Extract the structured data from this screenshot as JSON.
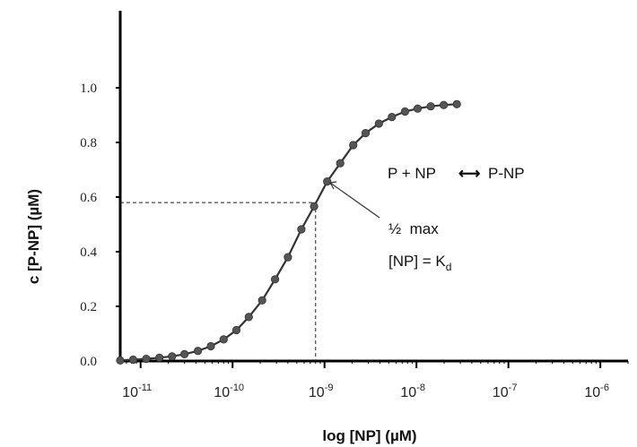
{
  "chart_data": {
    "type": "scatter",
    "title": "",
    "xlabel": "log [NP] (µM)",
    "ylabel": "c [P-NP] (µM)",
    "x_scale": "log",
    "xlim": [
      6e-12,
      2e-06
    ],
    "ylim": [
      0,
      1.2
    ],
    "x_ticks": [
      {
        "value": 1e-11,
        "base": "10",
        "exp": "-11"
      },
      {
        "value": 1e-10,
        "base": "10",
        "exp": "-10"
      },
      {
        "value": 1e-09,
        "base": "10",
        "exp": "-9"
      },
      {
        "value": 1e-08,
        "base": "10",
        "exp": "-8"
      },
      {
        "value": 1e-07,
        "base": "10",
        "exp": "-7"
      },
      {
        "value": 1e-06,
        "base": "10",
        "exp": "-6"
      }
    ],
    "y_ticks": [
      {
        "value": 0.0,
        "label": "0.0"
      },
      {
        "value": 0.2,
        "label": "0.2"
      },
      {
        "value": 0.4,
        "label": "0.4"
      },
      {
        "value": 0.6,
        "label": "0.6"
      },
      {
        "value": 0.8,
        "label": "0.8"
      },
      {
        "value": 1.0,
        "label": "1.0"
      }
    ],
    "grid": false,
    "series": [
      {
        "color": "#555555",
        "line_color": "#333333",
        "x": [
          6e-12,
          8.3e-12,
          1.15e-11,
          1.6e-11,
          2.2e-11,
          3e-11,
          4.2e-11,
          5.8e-11,
          8e-11,
          1.1e-10,
          1.5e-10,
          2.1e-10,
          2.9e-10,
          4e-10,
          5.6e-10,
          7.7e-10,
          1.07e-09,
          1.48e-09,
          2.05e-09,
          2.8e-09,
          3.9e-09,
          5.4e-09,
          7.5e-09,
          1.03e-08,
          1.43e-08,
          1.98e-08,
          2.75e-08
        ],
        "y": [
          0.002,
          0.005,
          0.008,
          0.012,
          0.017,
          0.025,
          0.037,
          0.054,
          0.079,
          0.113,
          0.161,
          0.222,
          0.299,
          0.38,
          0.482,
          0.566,
          0.657,
          0.724,
          0.79,
          0.834,
          0.869,
          0.893,
          0.913,
          0.924,
          0.932,
          0.937,
          0.94
        ]
      }
    ],
    "reference_point": {
      "x": 8e-10,
      "y": 0.58
    },
    "annotations": {
      "equation_left": "P + NP",
      "arrow_glyph": "⟷",
      "equation_right": "P-NP",
      "half_max": "½  max",
      "kd_prefix": "[NP] = K",
      "kd_sub": "d"
    }
  }
}
